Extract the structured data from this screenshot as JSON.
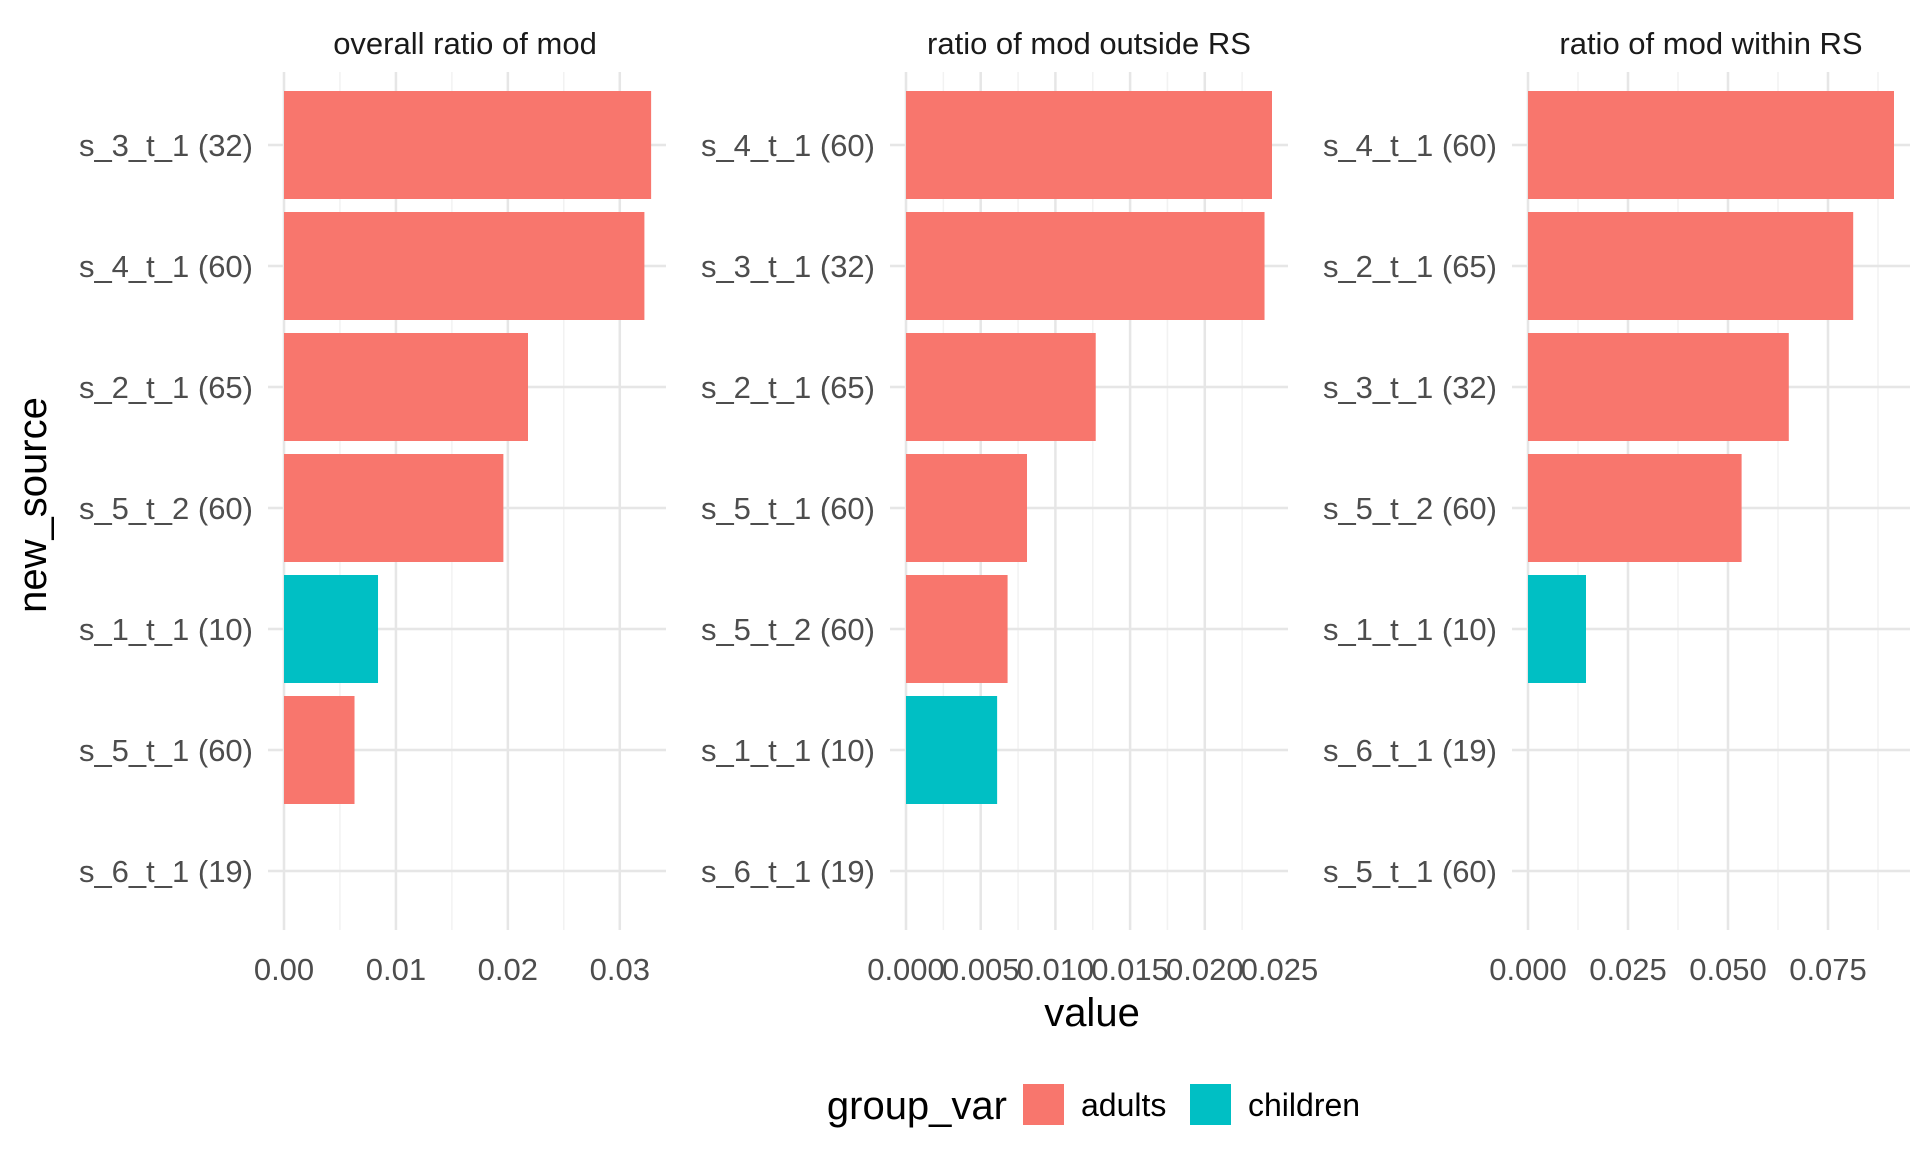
{
  "chart_data": {
    "type": "bar",
    "orientation": "horizontal",
    "xlabel": "value",
    "ylabel": "new_source",
    "legend": {
      "title": "group_var",
      "placement": "bottom",
      "entries": [
        {
          "name": "adults",
          "color": "#F8766D"
        },
        {
          "name": "children",
          "color": "#00BFC4"
        }
      ]
    },
    "grid": true,
    "panels": [
      {
        "title": "overall ratio of mod",
        "xlim": [
          0,
          0.0327
        ],
        "xticks": [
          0.0,
          0.01,
          0.02,
          0.03
        ],
        "xtick_labels": [
          "0.00",
          "0.01",
          "0.02",
          "0.03"
        ],
        "bars": [
          {
            "category": "s_3_t_1 (32)",
            "value": 0.0328,
            "group": "adults"
          },
          {
            "category": "s_4_t_1 (60)",
            "value": 0.0322,
            "group": "adults"
          },
          {
            "category": "s_2_t_1 (65)",
            "value": 0.0218,
            "group": "adults"
          },
          {
            "category": "s_5_t_2 (60)",
            "value": 0.0196,
            "group": "adults"
          },
          {
            "category": "s_1_t_1 (10)",
            "value": 0.0084,
            "group": "children"
          },
          {
            "category": "s_5_t_1 (60)",
            "value": 0.0063,
            "group": "adults"
          },
          {
            "category": "s_6_t_1 (19)",
            "value": 0,
            "group": null
          }
        ]
      },
      {
        "title": "ratio of mod outside RS",
        "xlim": [
          0,
          0.0245
        ],
        "xticks": [
          0.0,
          0.005,
          0.01,
          0.015,
          0.02,
          0.025
        ],
        "xtick_labels": [
          "0.000",
          "0.005",
          "0.010",
          "0.015",
          "0.020",
          "0.025"
        ],
        "bars": [
          {
            "category": "s_4_t_1 (60)",
            "value": 0.0245,
            "group": "adults"
          },
          {
            "category": "s_3_t_1 (32)",
            "value": 0.024,
            "group": "adults"
          },
          {
            "category": "s_2_t_1 (65)",
            "value": 0.0127,
            "group": "adults"
          },
          {
            "category": "s_5_t_1 (60)",
            "value": 0.0081,
            "group": "adults"
          },
          {
            "category": "s_5_t_2 (60)",
            "value": 0.0068,
            "group": "adults"
          },
          {
            "category": "s_1_t_1 (10)",
            "value": 0.0061,
            "group": "children"
          },
          {
            "category": "s_6_t_1 (19)",
            "value": 0,
            "group": null
          }
        ]
      },
      {
        "title": "ratio of mod within RS",
        "xlim": [
          0,
          0.0915
        ],
        "xticks": [
          0.0,
          0.025,
          0.05,
          0.075
        ],
        "xtick_labels": [
          "0.000",
          "0.025",
          "0.050",
          "0.075"
        ],
        "bars": [
          {
            "category": "s_4_t_1 (60)",
            "value": 0.0915,
            "group": "adults"
          },
          {
            "category": "s_2_t_1 (65)",
            "value": 0.0813,
            "group": "adults"
          },
          {
            "category": "s_3_t_1 (32)",
            "value": 0.0652,
            "group": "adults"
          },
          {
            "category": "s_5_t_2 (60)",
            "value": 0.0534,
            "group": "adults"
          },
          {
            "category": "s_1_t_1 (10)",
            "value": 0.0145,
            "group": "children"
          },
          {
            "category": "s_6_t_1 (19)",
            "value": 0,
            "group": null
          },
          {
            "category": "s_5_t_1 (60)",
            "value": 0,
            "group": null
          }
        ]
      }
    ]
  }
}
